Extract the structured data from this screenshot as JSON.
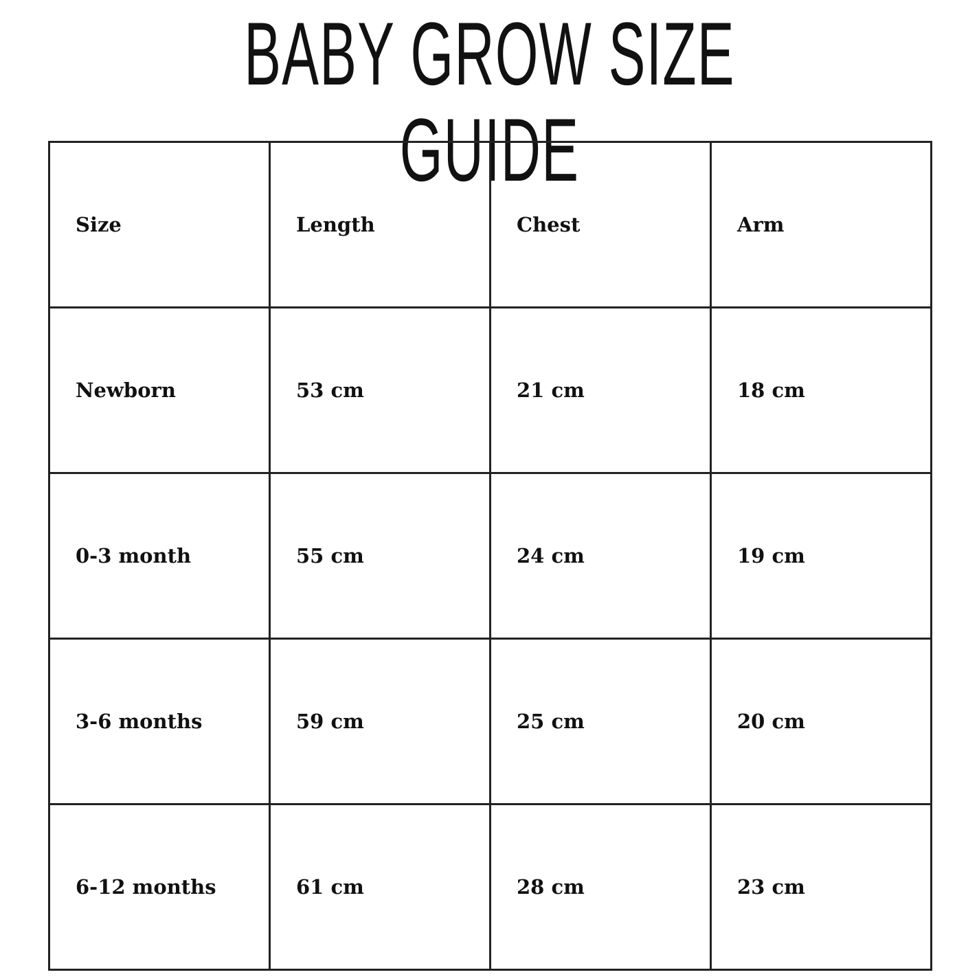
{
  "title": "BABY GROW SIZE GUIDE",
  "table": {
    "headers": [
      "Size",
      "Length",
      "Chest",
      "Arm"
    ],
    "rows": [
      [
        "Newborn",
        "53 cm",
        "21 cm",
        "18 cm"
      ],
      [
        "0-3 month",
        "55 cm",
        "24 cm",
        "19 cm"
      ],
      [
        "3-6 months",
        "59 cm",
        "25 cm",
        "20 cm"
      ],
      [
        "6-12 months",
        "61 cm",
        "28 cm",
        "23 cm"
      ]
    ]
  }
}
